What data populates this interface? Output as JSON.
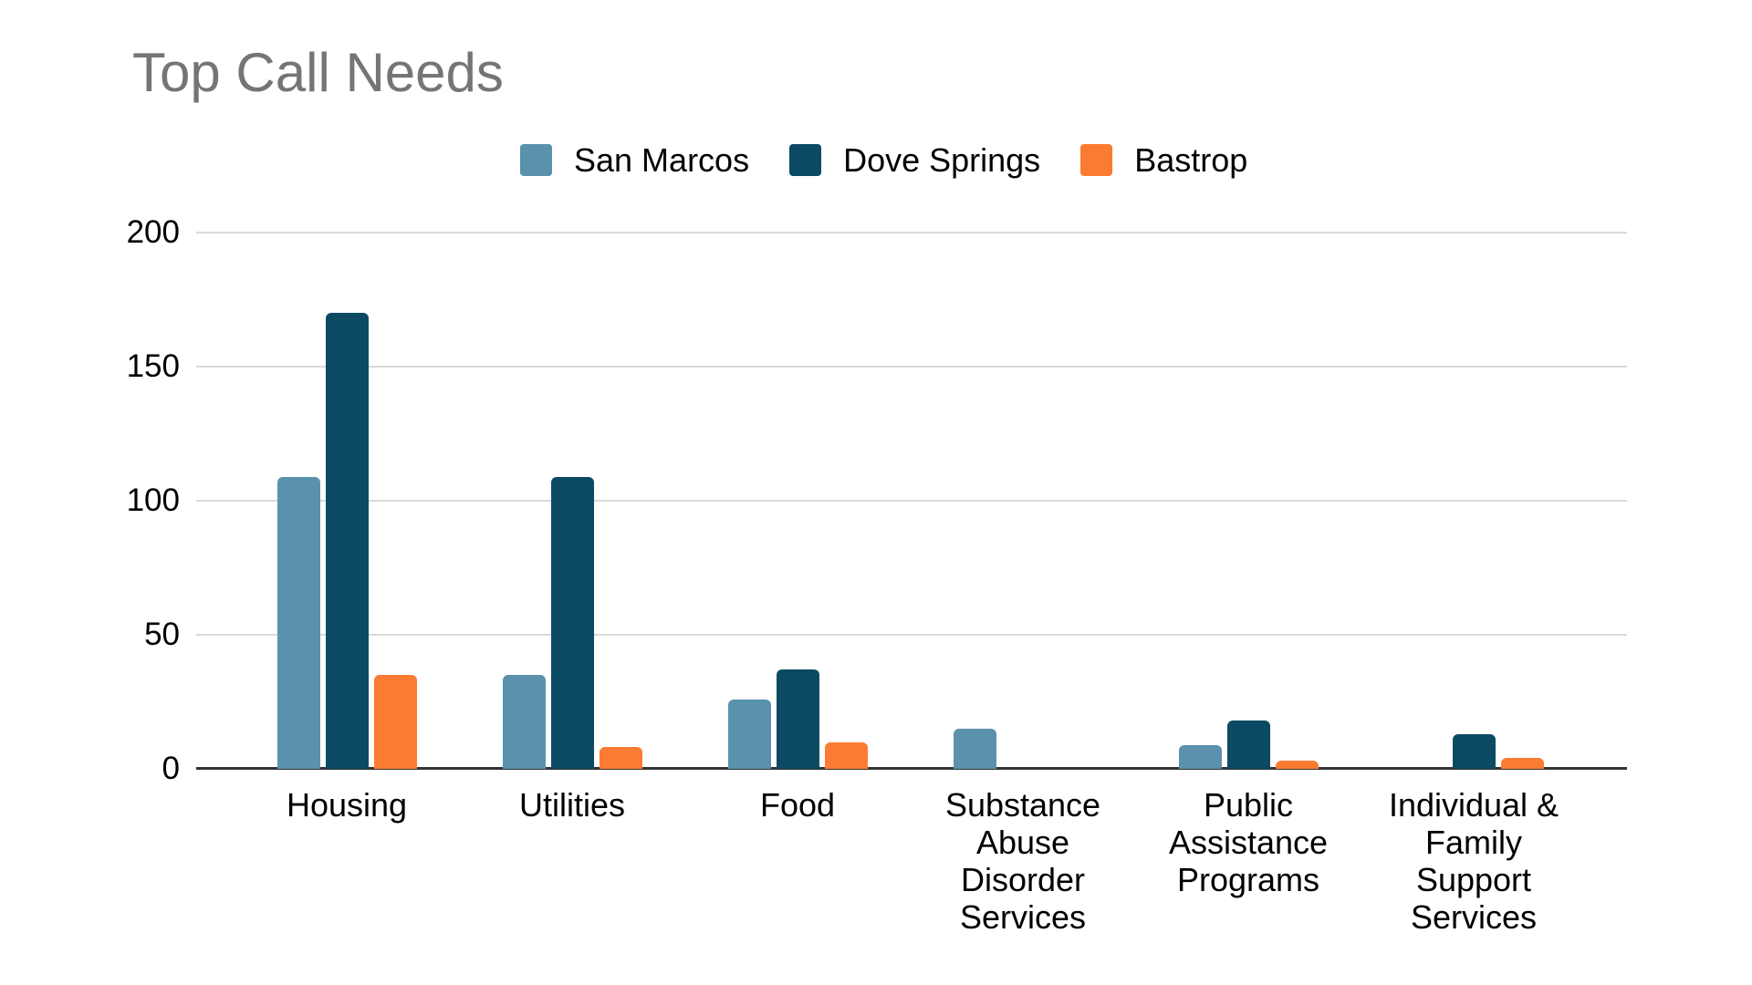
{
  "chart_data": {
    "type": "bar",
    "title": "Top Call Needs",
    "xlabel": "",
    "ylabel": "",
    "ylim": [
      0,
      200
    ],
    "y_ticks": [
      0,
      50,
      100,
      150,
      200
    ],
    "grid": true,
    "legend_position": "top",
    "categories": [
      "Housing",
      "Utilities",
      "Food",
      "Substance Abuse Disorder Services",
      "Public Assistance Programs",
      "Individual & Family Support Services"
    ],
    "category_label_lines": [
      [
        "Housing"
      ],
      [
        "Utilities"
      ],
      [
        "Food"
      ],
      [
        "Substance",
        "Abuse",
        "Disorder",
        "Services"
      ],
      [
        "Public",
        "Assistance",
        "Programs"
      ],
      [
        "Individual &",
        "Family",
        "Support",
        "Services"
      ]
    ],
    "series": [
      {
        "name": "San Marcos",
        "color": "#5A91AC",
        "values": [
          109,
          35,
          26,
          15,
          9,
          0
        ]
      },
      {
        "name": "Dove Springs",
        "color": "#0C4A64",
        "values": [
          170,
          109,
          37,
          0,
          18,
          13
        ]
      },
      {
        "name": "Bastrop",
        "color": "#FB7B32",
        "values": [
          35,
          8,
          10,
          0,
          3,
          4
        ]
      }
    ],
    "colors": {
      "title_text": "#757575",
      "axis_text": "#000000",
      "gridline": "#D9D9D9",
      "axis_line": "#333333",
      "background": "#FFFFFF"
    }
  }
}
